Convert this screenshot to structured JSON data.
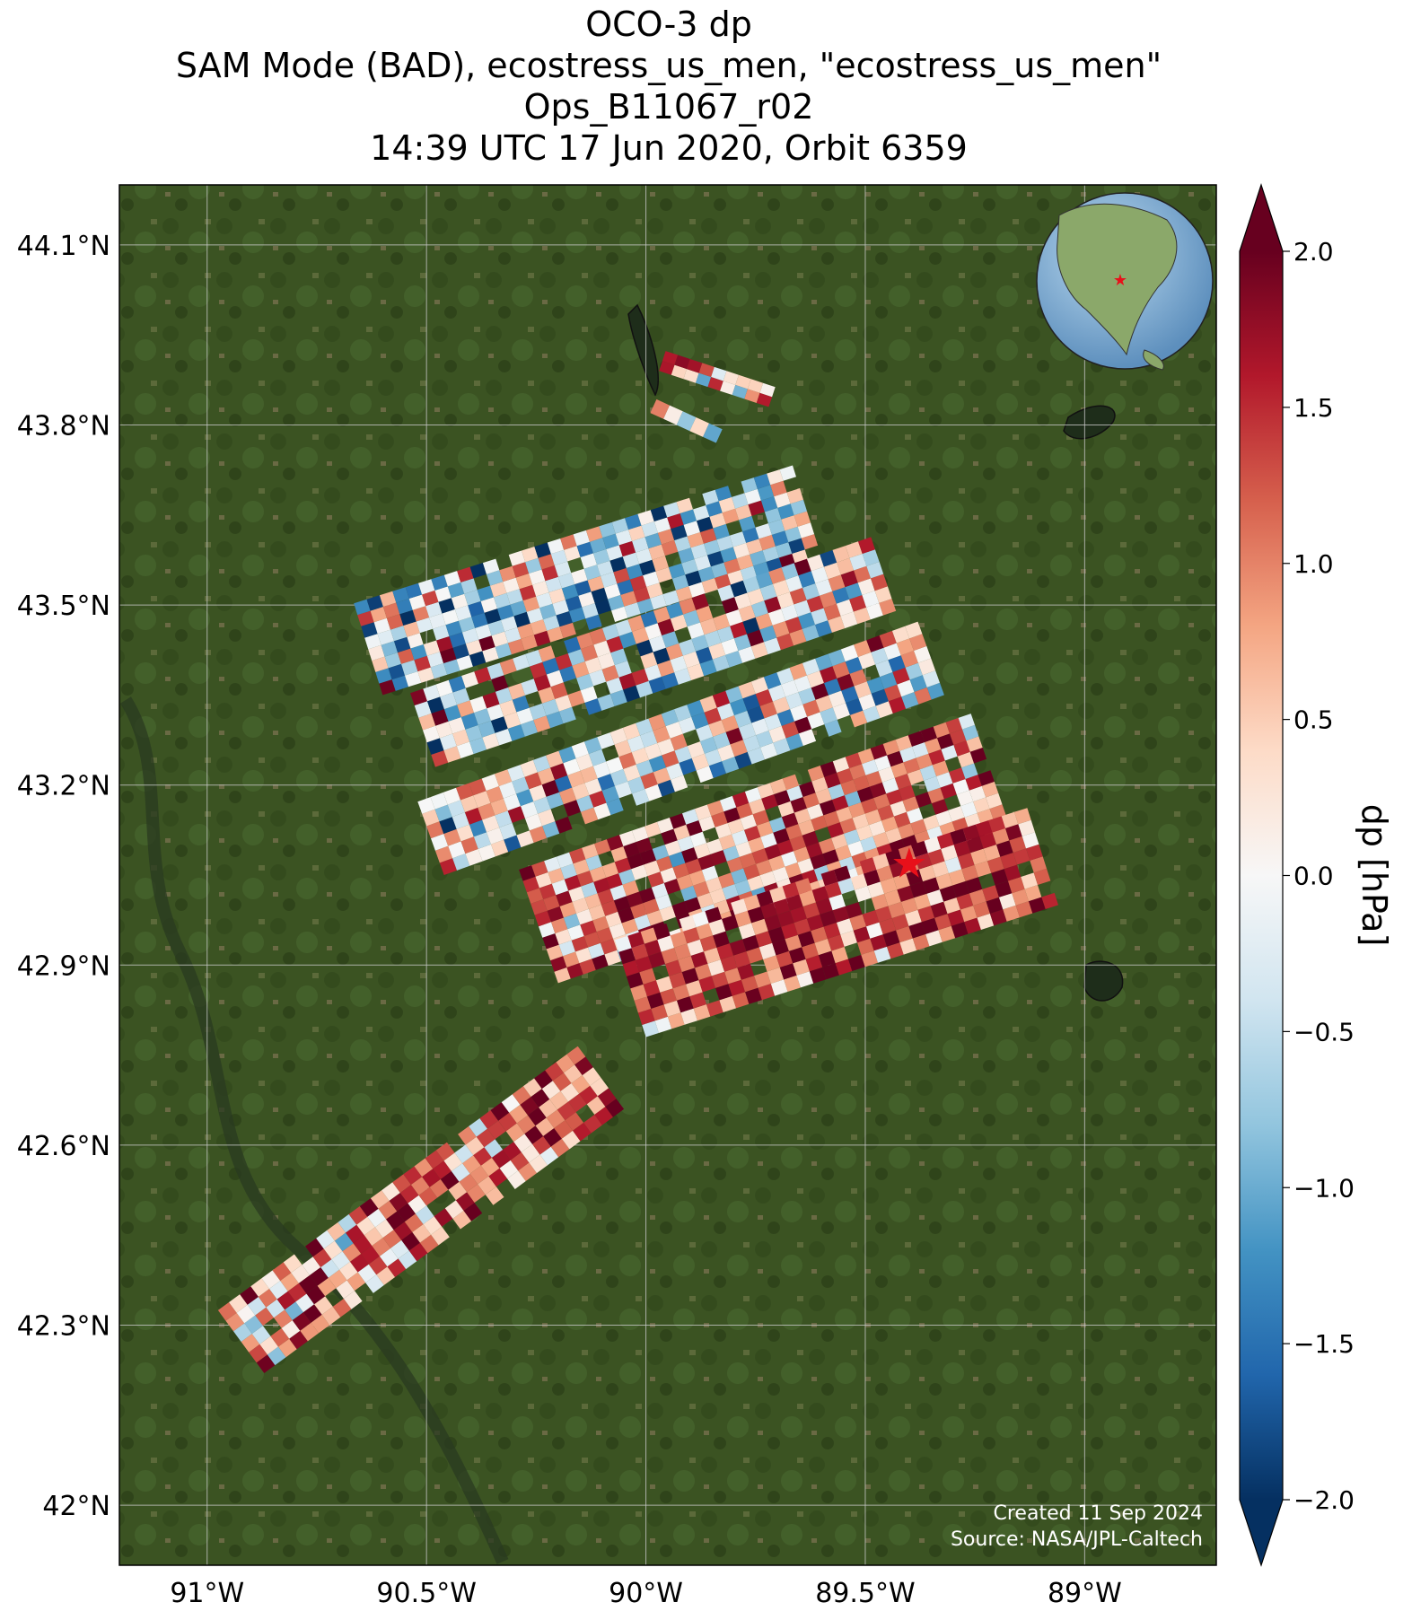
{
  "title": {
    "line1": "OCO-3 dp",
    "line2": "SAM Mode (BAD), ecostress_us_men, \"ecostress_us_men\"",
    "line3": "Ops_B11067_r02",
    "line4": "14:39 UTC 17 Jun 2020, Orbit 6359"
  },
  "map": {
    "lon_range": [
      -91.2,
      -88.7
    ],
    "lat_range": [
      41.9,
      44.2
    ],
    "lon_ticks": [
      {
        "value": -91.0,
        "label": "91°W"
      },
      {
        "value": -90.5,
        "label": "90.5°W"
      },
      {
        "value": -90.0,
        "label": "90°W"
      },
      {
        "value": -89.5,
        "label": "89.5°W"
      },
      {
        "value": -89.0,
        "label": "89°W"
      }
    ],
    "lat_ticks": [
      {
        "value": 44.1,
        "label": "44.1°N"
      },
      {
        "value": 43.8,
        "label": "43.8°N"
      },
      {
        "value": 43.5,
        "label": "43.5°N"
      },
      {
        "value": 43.2,
        "label": "43.2°N"
      },
      {
        "value": 42.9,
        "label": "42.9°N"
      },
      {
        "value": 42.6,
        "label": "42.6°N"
      },
      {
        "value": 42.3,
        "label": "42.3°N"
      },
      {
        "value": 42.0,
        "label": "42°N"
      }
    ],
    "gridlines": true,
    "basemap": "satellite imagery",
    "target_marker": {
      "lon": -89.4,
      "lat": 43.07,
      "color": "#e8101a",
      "icon": "star-icon"
    },
    "credits": {
      "created": "Created 11 Sep 2024",
      "source": "Source: NASA/JPL-Caltech"
    },
    "inset_globe": {
      "placement": "top-right",
      "icon": "globe-icon",
      "marker_color": "#e8101a"
    }
  },
  "colorbar": {
    "label": "dp [hPa]",
    "range": [
      -2.0,
      2.0
    ],
    "extend": "both",
    "colormap": "RdBu_r",
    "colors": [
      "#053061",
      "#2166ac",
      "#4393c3",
      "#92c5de",
      "#d1e5f0",
      "#f7f7f7",
      "#fddbc7",
      "#f4a582",
      "#d6604d",
      "#b2182b",
      "#67001f"
    ],
    "ticks": [
      {
        "value": 2.0,
        "label": "2.0"
      },
      {
        "value": 1.5,
        "label": "1.5"
      },
      {
        "value": 1.0,
        "label": "1.0"
      },
      {
        "value": 0.5,
        "label": "0.5"
      },
      {
        "value": 0.0,
        "label": "0.0"
      },
      {
        "value": -0.5,
        "label": "−0.5"
      },
      {
        "value": -1.0,
        "label": "−1.0"
      },
      {
        "value": -1.5,
        "label": "−1.5"
      },
      {
        "value": -2.0,
        "label": "−2.0"
      }
    ]
  },
  "swaths": [
    {
      "name": "swath-1",
      "start": [
        -89.97,
        43.89
      ],
      "end": [
        -89.72,
        43.83
      ],
      "width": 0.035,
      "mean": 0.6,
      "spread": 1.0
    },
    {
      "name": "swath-2",
      "start": [
        -89.99,
        43.82
      ],
      "end": [
        -89.84,
        43.77
      ],
      "width": 0.025,
      "mean": -0.4,
      "spread": 1.1
    },
    {
      "name": "swath-3",
      "start": [
        -90.6,
        43.35
      ],
      "end": [
        -89.6,
        43.58
      ],
      "width": 0.16,
      "mean": -0.3,
      "spread": 1.0
    },
    {
      "name": "swath-4",
      "start": [
        -90.48,
        43.23
      ],
      "end": [
        -89.43,
        43.49
      ],
      "width": 0.13,
      "mean": -0.05,
      "spread": 1.05
    },
    {
      "name": "swath-5",
      "start": [
        -90.46,
        43.05
      ],
      "end": [
        -89.32,
        43.35
      ],
      "width": 0.13,
      "mean": 0.0,
      "spread": 1.0
    },
    {
      "name": "swath-6",
      "start": [
        -90.2,
        42.87
      ],
      "end": [
        -89.17,
        43.13
      ],
      "width": 0.2,
      "mean": 0.9,
      "spread": 0.9
    },
    {
      "name": "swath-7",
      "start": [
        -90.0,
        42.78
      ],
      "end": [
        -89.06,
        43.0
      ],
      "width": 0.17,
      "mean": 1.3,
      "spread": 0.7
    },
    {
      "name": "swath-8",
      "start": [
        -90.87,
        42.22
      ],
      "end": [
        -90.05,
        42.66
      ],
      "width": 0.13,
      "mean": 1.0,
      "spread": 0.9
    }
  ]
}
